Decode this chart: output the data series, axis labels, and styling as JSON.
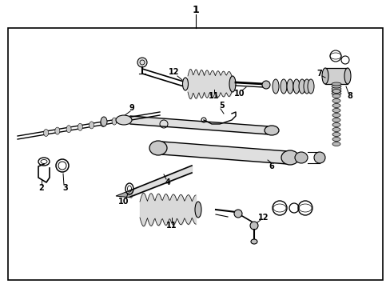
{
  "figsize": [
    4.89,
    3.6
  ],
  "dpi": 100,
  "bg": "#ffffff",
  "border": "#000000",
  "lc": "#000000"
}
